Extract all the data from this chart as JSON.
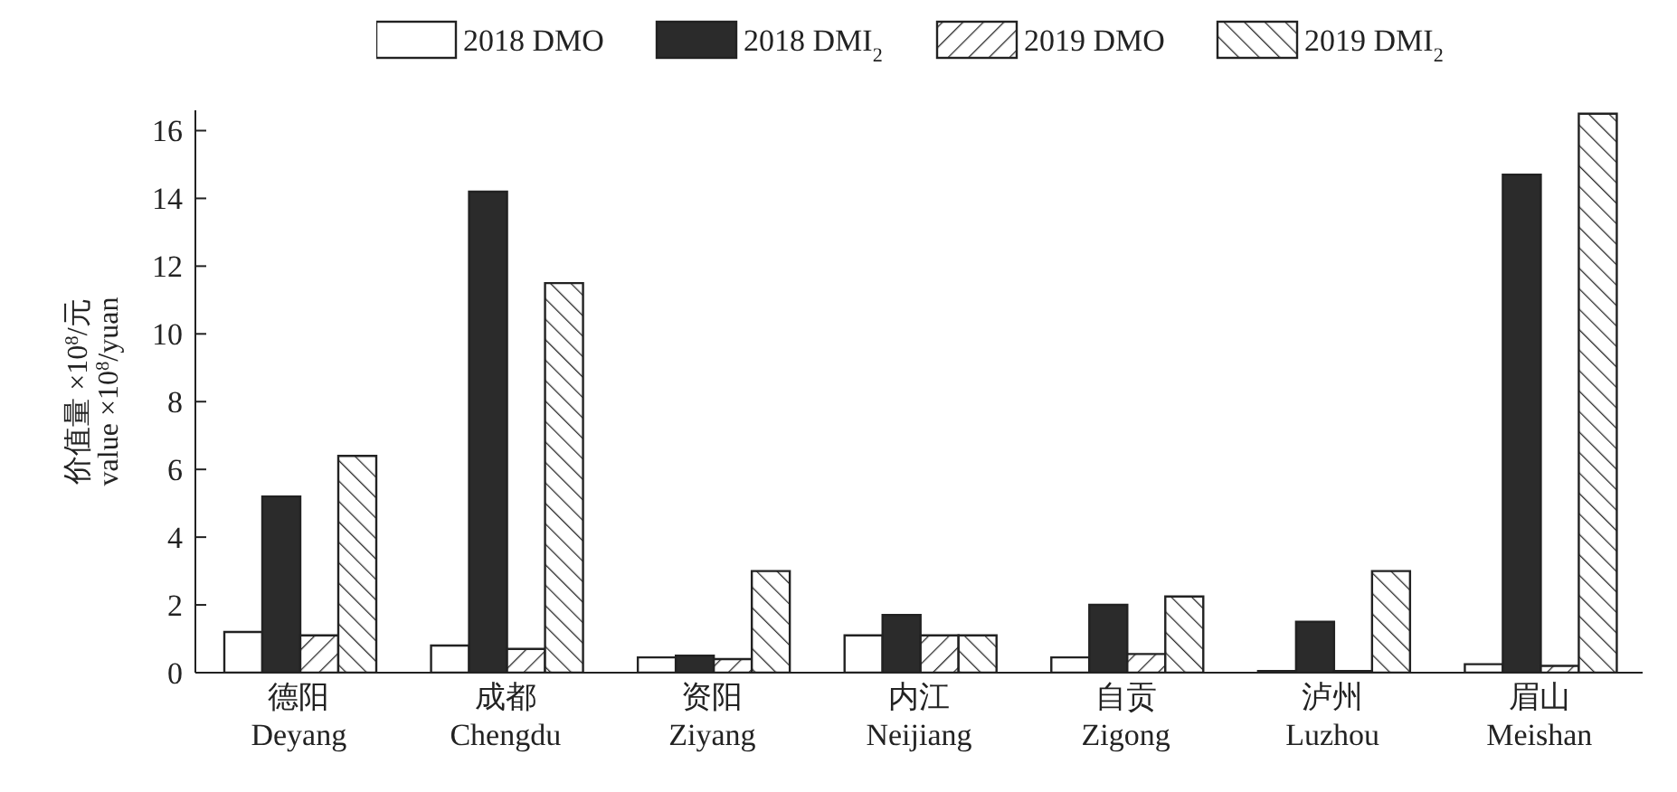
{
  "chart_data": {
    "type": "bar",
    "ylabel": "价值量 ×10$^{8}$/元\nvalue ×10$^{8}$/yuan",
    "categories": [
      "德阳\nDeyang",
      "成都\nChengdu",
      "资阳\nZiyang",
      "内江\nNeijiang",
      "自贡\nZigong",
      "泸州\nLuzhou",
      "眉山\nMeishan"
    ],
    "series": [
      {
        "name": "2018 DMO",
        "color": "#ffffff",
        "values": [
          1.2,
          0.8,
          0.45,
          1.1,
          0.45,
          0.05,
          0.25
        ]
      },
      {
        "name": "2018 DMI$_{2}$",
        "color": "#2b2b2b",
        "values": [
          5.2,
          14.2,
          0.5,
          1.7,
          2.0,
          1.5,
          14.7
        ]
      },
      {
        "name": "2019 DMO",
        "color": "#2b2b2b",
        "values": [
          1.1,
          0.7,
          0.4,
          1.1,
          0.55,
          0.05,
          0.2
        ]
      },
      {
        "name": "2019 DMI$_{2}$",
        "color": "#2b2b2b",
        "values": [
          6.4,
          11.5,
          3.0,
          1.1,
          2.25,
          3.0,
          16.5
        ]
      }
    ],
    "ylim": [
      0,
      16.6
    ],
    "yticks": [
      0,
      2,
      4,
      6,
      8,
      10,
      12,
      14,
      16
    ],
    "grid": false,
    "legend": "top"
  }
}
